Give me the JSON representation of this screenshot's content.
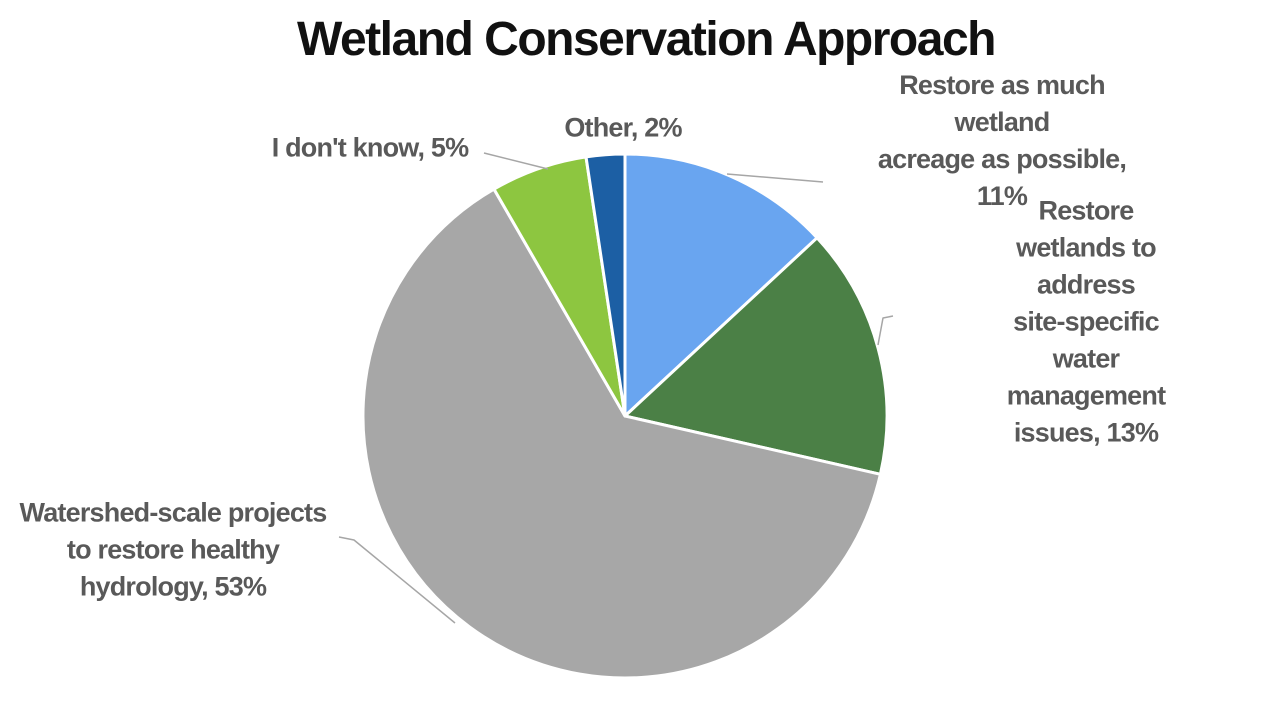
{
  "chart_data": {
    "type": "pie",
    "title": "Wetland Conservation Approach",
    "units": "%",
    "direction": "clockwise",
    "start_angle_deg": 0,
    "legend_position": "none",
    "slices": [
      {
        "label": "Restore as much wetland acreage as possible",
        "value": 11,
        "color": "#69A5F0"
      },
      {
        "label": "Restore wetlands to address site-specific water management issues",
        "value": 13,
        "color": "#4B8046"
      },
      {
        "label": "Watershed-scale projects to restore healthy hydrology",
        "value": 53,
        "color": "#A7A7A7"
      },
      {
        "label": "I don't know",
        "value": 5,
        "color": "#8DC640"
      },
      {
        "label": "Other",
        "value": 2,
        "color": "#1C5FA4"
      }
    ],
    "callouts": {
      "other": "Other, 2%",
      "idk": "I don't know, 5%",
      "acreage": "Restore as much wetland\nacreage as possible, 11%",
      "site_specific": "Restore wetlands to address\nsite-specific water\nmanagement issues, 13%",
      "watershed": "Watershed-scale projects\nto restore healthy\nhydrology, 53%"
    },
    "colors": {
      "title_text": "#111111",
      "label_text": "#595959",
      "leader_line": "#A6A6A6",
      "slice_border": "#FFFFFF",
      "background": "#FFFFFF"
    }
  }
}
